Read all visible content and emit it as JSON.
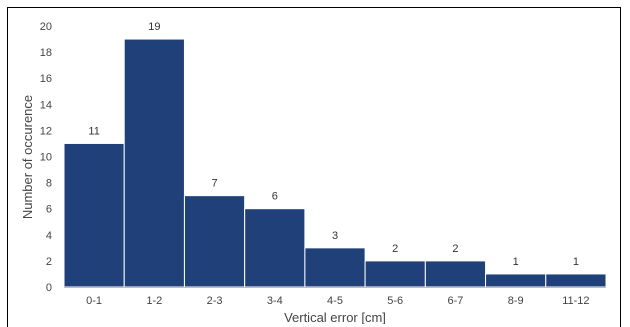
{
  "chart_data": {
    "type": "bar",
    "categories": [
      "0-1",
      "1-2",
      "2-3",
      "3-4",
      "4-5",
      "5-6",
      "6-7",
      "8-9",
      "11-12"
    ],
    "values": [
      11,
      19,
      7,
      6,
      3,
      2,
      2,
      1,
      1
    ],
    "title": "",
    "xlabel": "Vertical error [cm]",
    "ylabel": "Number of occurence",
    "ylim": [
      0,
      20
    ],
    "yticks": [
      0,
      2,
      4,
      6,
      8,
      10,
      12,
      14,
      16,
      18,
      20
    ],
    "bar_color": "#1f4078",
    "grid": false,
    "legend": "none",
    "data_labels": true
  }
}
